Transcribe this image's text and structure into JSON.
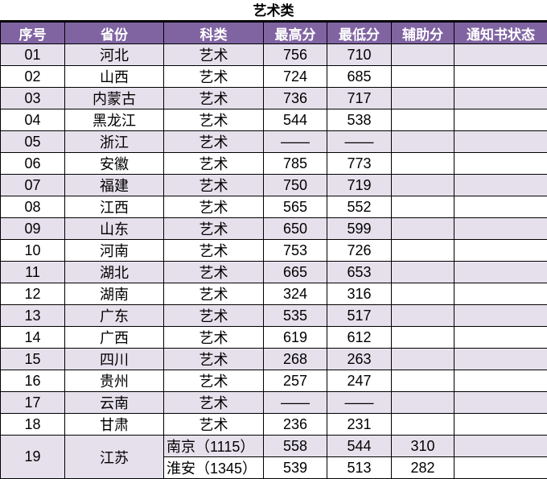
{
  "title": "艺术类",
  "colors": {
    "header_bg": "#8064a2",
    "band_bg": "#e6e0ec"
  },
  "headers": [
    "序号",
    "省份",
    "科类",
    "最高分",
    "最低分",
    "辅助分",
    "通知书状态"
  ],
  "rows": [
    {
      "no": "01",
      "province": "河北",
      "type": "艺术",
      "max": "756",
      "min": "710"
    },
    {
      "no": "02",
      "province": "山西",
      "type": "艺术",
      "max": "724",
      "min": "685"
    },
    {
      "no": "03",
      "province": "内蒙古",
      "type": "艺术",
      "max": "736",
      "min": "717"
    },
    {
      "no": "04",
      "province": "黑龙江",
      "type": "艺术",
      "max": "544",
      "min": "538"
    },
    {
      "no": "05",
      "province": "浙江",
      "type": "艺术",
      "max": "——",
      "min": "——"
    },
    {
      "no": "06",
      "province": "安徽",
      "type": "艺术",
      "max": "785",
      "min": "773"
    },
    {
      "no": "07",
      "province": "福建",
      "type": "艺术",
      "max": "750",
      "min": "719"
    },
    {
      "no": "08",
      "province": "江西",
      "type": "艺术",
      "max": "565",
      "min": "552"
    },
    {
      "no": "09",
      "province": "山东",
      "type": "艺术",
      "max": "650",
      "min": "599"
    },
    {
      "no": "10",
      "province": "河南",
      "type": "艺术",
      "max": "753",
      "min": "726"
    },
    {
      "no": "11",
      "province": "湖北",
      "type": "艺术",
      "max": "665",
      "min": "653"
    },
    {
      "no": "12",
      "province": "湖南",
      "type": "艺术",
      "max": "324",
      "min": "316"
    },
    {
      "no": "13",
      "province": "广东",
      "type": "艺术",
      "max": "535",
      "min": "517"
    },
    {
      "no": "14",
      "province": "广西",
      "type": "艺术",
      "max": "619",
      "min": "612"
    },
    {
      "no": "15",
      "province": "四川",
      "type": "艺术",
      "max": "268",
      "min": "263"
    },
    {
      "no": "16",
      "province": "贵州",
      "type": "艺术",
      "max": "257",
      "min": "247"
    },
    {
      "no": "17",
      "province": "云南",
      "type": "艺术",
      "max": "——",
      "min": "——"
    },
    {
      "no": "18",
      "province": "甘肃",
      "type": "艺术",
      "max": "236",
      "min": "231"
    }
  ],
  "jiangsu": {
    "no": "19",
    "province": "江苏",
    "sub": [
      {
        "type": "南京（1115）",
        "max": "558",
        "min": "544",
        "aux": "310"
      },
      {
        "type": "淮安（1345）",
        "max": "539",
        "min": "513",
        "aux": "282"
      }
    ]
  }
}
